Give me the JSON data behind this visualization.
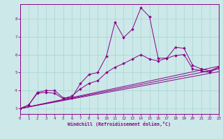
{
  "xlabel": "Windchill (Refroidissement éolien,°C)",
  "background_color": "#cce8e8",
  "grid_color": "#a8d4d4",
  "line_color": "#880088",
  "xlim": [
    0,
    23
  ],
  "ylim": [
    2.7,
    8.8
  ],
  "xticks": [
    0,
    1,
    2,
    3,
    4,
    5,
    6,
    7,
    8,
    9,
    10,
    11,
    12,
    13,
    14,
    15,
    16,
    17,
    18,
    19,
    20,
    21,
    22,
    23
  ],
  "yticks": [
    3,
    4,
    5,
    6,
    7,
    8
  ],
  "lines": [
    {
      "x": [
        0,
        1,
        2,
        3,
        4,
        5,
        6,
        7,
        8,
        9,
        10,
        11,
        12,
        13,
        14,
        15,
        16,
        17,
        18,
        19,
        20,
        21,
        22,
        23
      ],
      "y": [
        3.0,
        3.2,
        3.9,
        4.0,
        4.0,
        3.6,
        3.6,
        4.4,
        4.9,
        5.0,
        5.9,
        7.8,
        6.95,
        7.4,
        8.6,
        8.1,
        5.8,
        5.8,
        6.4,
        6.35,
        5.4,
        5.2,
        5.1,
        5.3
      ],
      "markers": true
    },
    {
      "x": [
        0,
        1,
        2,
        3,
        4,
        5,
        6,
        7,
        8,
        9,
        10,
        11,
        12,
        13,
        14,
        15,
        16,
        17,
        18,
        19,
        20,
        21,
        22,
        23
      ],
      "y": [
        3.0,
        3.2,
        3.85,
        3.9,
        3.85,
        3.55,
        3.7,
        4.1,
        4.4,
        4.55,
        5.0,
        5.3,
        5.5,
        5.75,
        6.0,
        5.75,
        5.65,
        5.8,
        5.95,
        6.0,
        5.2,
        5.1,
        5.0,
        5.3
      ],
      "markers": true
    },
    {
      "x": [
        0,
        23
      ],
      "y": [
        3.0,
        5.35
      ],
      "markers": false
    },
    {
      "x": [
        0,
        23
      ],
      "y": [
        3.0,
        5.05
      ],
      "markers": false
    },
    {
      "x": [
        0,
        23
      ],
      "y": [
        3.0,
        5.2
      ],
      "markers": false
    }
  ]
}
